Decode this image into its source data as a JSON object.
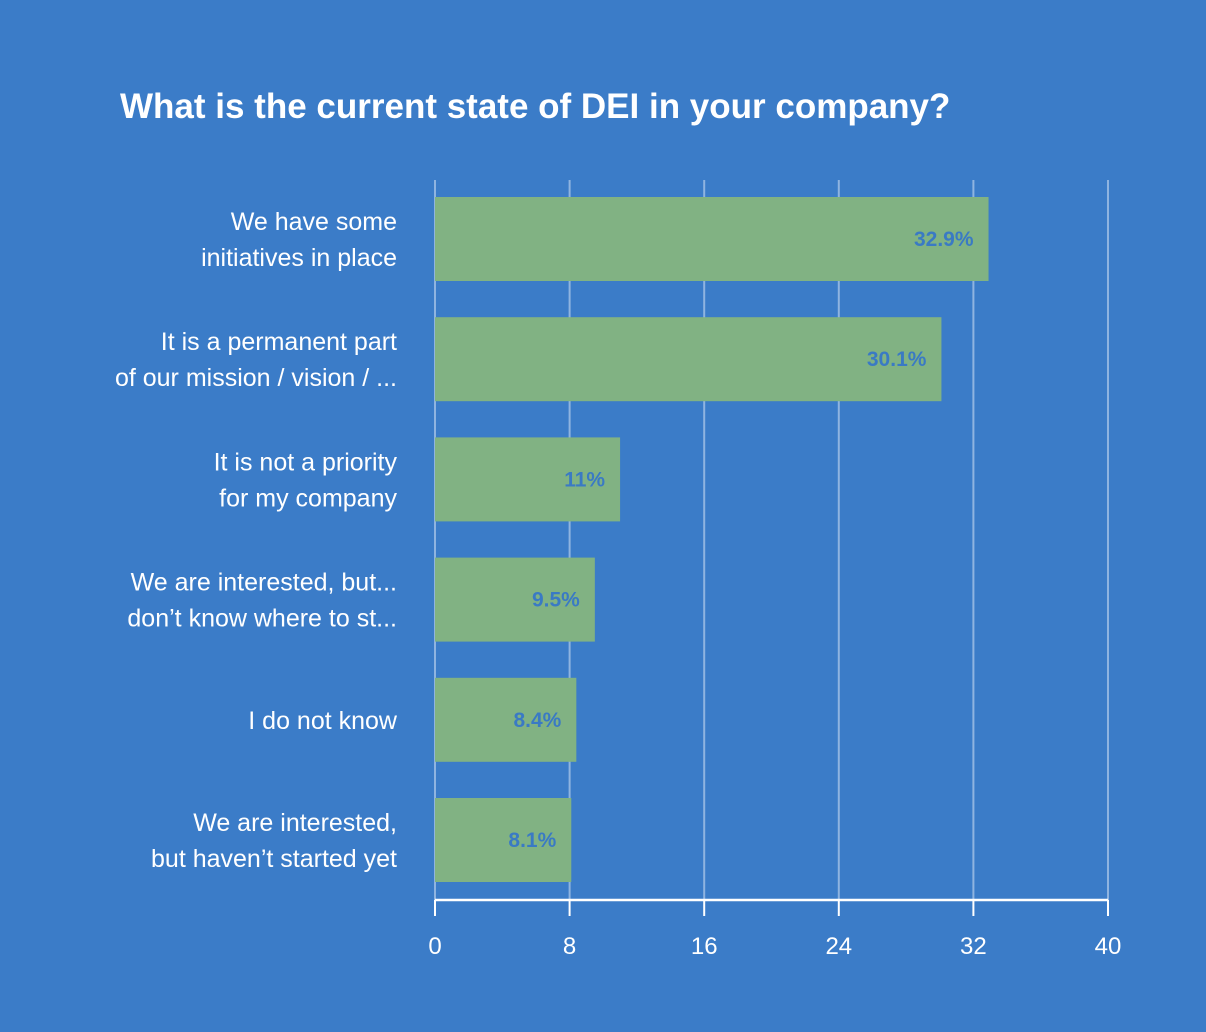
{
  "colors": {
    "background": "#3b7cc8",
    "bar": "#81b283",
    "value_label": "#3a7ac4",
    "text": "#ffffff",
    "grid": "#8fb4e0"
  },
  "chart_data": {
    "type": "bar",
    "orientation": "horizontal",
    "title": "What is the current state of DEI in your company?",
    "categories": [
      [
        "We have some",
        "initiatives in place"
      ],
      [
        "It is a permanent part",
        "of our mission / vision / ..."
      ],
      [
        "It is not a priority",
        "for my company"
      ],
      [
        "We are interested, but...",
        "don’t know where to st..."
      ],
      [
        "I do not know"
      ],
      [
        "We are interested,",
        "but haven’t started yet"
      ]
    ],
    "values": [
      32.9,
      30.1,
      11,
      9.5,
      8.4,
      8.1
    ],
    "value_labels": [
      "32.9%",
      "30.1%",
      "11%",
      "9.5%",
      "8.4%",
      "8.1%"
    ],
    "xlim": [
      0,
      40
    ],
    "xticks": [
      0,
      8,
      16,
      24,
      32,
      40
    ],
    "xlabel": "",
    "ylabel": "",
    "grid": true,
    "legend": "none"
  }
}
